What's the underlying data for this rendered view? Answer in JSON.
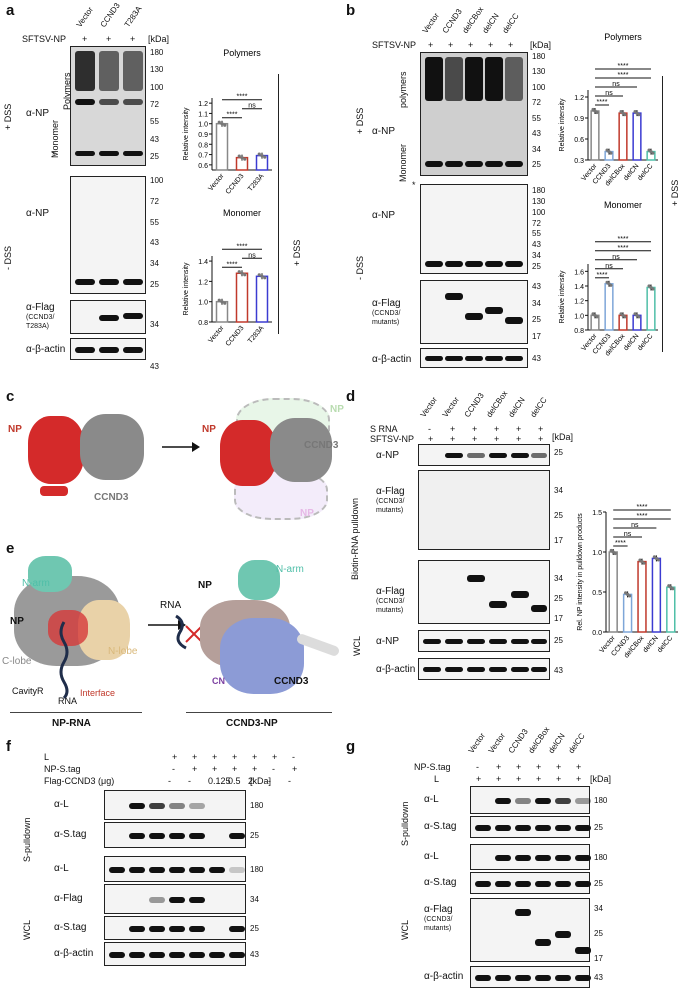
{
  "panels": {
    "a": {
      "label": "a",
      "header": "SFTSV-NP",
      "lanes": [
        "Vector",
        "CCND3",
        "T283A"
      ],
      "signs": [
        "+",
        "+",
        "+"
      ],
      "kda": "[kDa]",
      "markers_top": [
        "180",
        "130",
        "100",
        "72",
        "55",
        "43",
        "25"
      ],
      "markers_mid": [
        "100",
        "72",
        "55",
        "43",
        "34",
        "25"
      ],
      "markers_flag": [
        "34"
      ],
      "markers_actin": [
        "43"
      ],
      "polymers": "Polymers",
      "monomer": "Monomer",
      "star": "*",
      "dss_plus": "+ DSS",
      "dss_minus": "- DSS",
      "dss_right": "+ DSS",
      "np_label": "α-NP",
      "np_label2": "α-NP",
      "flag_label": "α-Flag",
      "flag_sub": "(CCND3/",
      "flag_sub2": "T283A)",
      "actin_label": "α-β-actin"
    },
    "b": {
      "label": "b",
      "header": "SFTSV-NP",
      "lanes": [
        "Vector",
        "CCND3",
        "delCBox",
        "delCN",
        "delCC"
      ],
      "signs": [
        "+",
        "+",
        "+",
        "+",
        "+"
      ],
      "kda": "[kDa]",
      "markers_top": [
        "180",
        "130",
        "100",
        "72",
        "55",
        "43",
        "34",
        "25"
      ],
      "markers_mid": [
        "180",
        "130",
        "100",
        "72",
        "55",
        "43",
        "34",
        "25"
      ],
      "markers_flag": [
        "43",
        "34",
        "25",
        "17"
      ],
      "markers_actin": [
        "43"
      ],
      "polymers": "polymers",
      "monomer": "Monomer",
      "star": "*",
      "dss_plus": "+ DSS",
      "dss_minus": "- DSS",
      "dss_right": "+ DSS",
      "np_label": "α-NP",
      "np_label2": "α-NP",
      "flag_label": "α-Flag",
      "flag_sub": "(CCND3/",
      "flag_sub2": "mutants)",
      "actin_label": "α-β-actin"
    },
    "c": {
      "label": "c",
      "np": "NP",
      "ccnd3": "CCND3",
      "np_ghost": "NP",
      "np_ghost2": "NP",
      "np2": "NP",
      "ccnd3_2": "CCND3"
    },
    "d": {
      "label": "d",
      "row1": "S RNA",
      "row2": "SFTSV-NP",
      "lanes": [
        "Vector",
        "Vector",
        "CCND3",
        "delCBox",
        "delCN",
        "delCC"
      ],
      "row1_signs": [
        "-",
        "+",
        "+",
        "+",
        "+",
        "+"
      ],
      "row2_signs": [
        "+",
        "+",
        "+",
        "+",
        "+",
        "+"
      ],
      "kda": "[kDa]",
      "side_pulldown": "Biotin-RNA pulldown",
      "side_wcl": "WCL",
      "np_label": "α-NP",
      "flag_label": "α-Flag",
      "flag_sub": "(CCND3/",
      "flag_sub2": "mutants)",
      "flag_label2": "α-Flag",
      "flag_sub3": "(CCND3/",
      "flag_sub4": "mutants)",
      "np_label2": "α-NP",
      "actin_label": "α-β-actin",
      "m_np": [
        "25"
      ],
      "m_flag": [
        "34",
        "25",
        "17"
      ],
      "m_flag2": [
        "34",
        "25",
        "17"
      ],
      "m_np2": [
        "25"
      ],
      "m_actin": [
        "43"
      ]
    },
    "e": {
      "label": "e",
      "narm": "N-arm",
      "np": "NP",
      "clobe": "C-lobe",
      "nlobe": "N-lobe",
      "cavity": "CavityR",
      "rna": "RNA",
      "interface": "Interface",
      "caption1": "NP-RNA",
      "rna2": "RNA",
      "narm2": "N-arm",
      "np2": "NP",
      "cn": "CN",
      "ccnd3": "CCND3",
      "caption2": "CCND3-NP"
    },
    "f": {
      "label": "f",
      "rows": [
        "L",
        "NP-S.tag",
        "Flag-CCND3 (μg)"
      ],
      "row_L": [
        "+",
        "+",
        "+",
        "+",
        "+",
        "+",
        "-"
      ],
      "row_NP": [
        "-",
        "+",
        "+",
        "+",
        "+",
        "-",
        "+"
      ],
      "row_flag": [
        "-",
        "-",
        "0.125",
        "0.5",
        "2",
        "-",
        "-"
      ],
      "kda": "[kDa]",
      "side_pulldown": "S-pulldown",
      "side_wcl": "WCL",
      "blots": [
        "α-L",
        "α-S.tag",
        "α-L",
        "α-Flag",
        "α-S.tag",
        "α-β-actin"
      ],
      "markers": [
        "180",
        "25",
        "180",
        "34",
        "25",
        "43"
      ]
    },
    "g": {
      "label": "g",
      "lanes": [
        "Vector",
        "Vector",
        "CCND3",
        "delCBox",
        "delCN",
        "delCC"
      ],
      "row1": "NP-S.tag",
      "row2": "L",
      "row1_signs": [
        "-",
        "+",
        "+",
        "+",
        "+",
        "+"
      ],
      "row2_signs": [
        "+",
        "+",
        "+",
        "+",
        "+",
        "+"
      ],
      "kda": "[kDa]",
      "side_pulldown": "S-pulldown",
      "side_wcl": "WCL",
      "blots": [
        "α-L",
        "α-S.tag",
        "α-L",
        "α-S.tag",
        "α-Flag",
        "α-β-actin"
      ],
      "flag_sub": "(CCND3/",
      "flag_sub2": "mutants)",
      "markers": [
        "180",
        "25",
        "180",
        "25",
        "34",
        "25",
        "17",
        "43"
      ]
    }
  },
  "chart_data": [
    {
      "type": "bar",
      "panel": "a",
      "title": "Polymers",
      "categories": [
        "Vector",
        "CCND3",
        "T283A"
      ],
      "values": [
        1.0,
        0.67,
        0.69
      ],
      "ylabel": "Relative intensity",
      "ylim": [
        0.55,
        1.25
      ],
      "yticks": [
        "0.6",
        "0.7",
        "0.8",
        "0.9",
        "1.0",
        "1.1",
        "1.2"
      ],
      "significance": [
        "****",
        "****",
        "ns"
      ],
      "colors": [
        "#888888",
        "#c0392b",
        "#3b3bd1"
      ]
    },
    {
      "type": "bar",
      "panel": "a",
      "title": "Monomer",
      "categories": [
        "Vector",
        "CCND3",
        "T283A"
      ],
      "values": [
        1.0,
        1.28,
        1.25
      ],
      "ylabel": "Relative intensity",
      "ylim": [
        0.8,
        1.45
      ],
      "yticks": [
        "0.8",
        "1.0",
        "1.2",
        "1.4"
      ],
      "significance": [
        "****",
        "****",
        "ns"
      ],
      "colors": [
        "#888888",
        "#c0392b",
        "#3b3bd1"
      ]
    },
    {
      "type": "bar",
      "panel": "b",
      "title": "Polymers",
      "categories": [
        "Vector",
        "CCND3",
        "delCBox",
        "delCN",
        "delCC"
      ],
      "values": [
        1.0,
        0.42,
        0.97,
        0.97,
        0.42
      ],
      "ylabel": "Relative intensity",
      "ylim": [
        0.3,
        1.3
      ],
      "yticks": [
        "0.3",
        "0.6",
        "0.9",
        "1.2"
      ],
      "significance": [
        "****",
        "****",
        "ns",
        "ns",
        "****"
      ],
      "colors": [
        "#888888",
        "#7ea6d8",
        "#c0392b",
        "#3b3bd1",
        "#4fbfa8"
      ]
    },
    {
      "type": "bar",
      "panel": "b",
      "title": "Monomer",
      "categories": [
        "Vector",
        "CCND3",
        "delCBox",
        "delCN",
        "delCC"
      ],
      "values": [
        1.0,
        1.43,
        1.0,
        1.0,
        1.38
      ],
      "ylabel": "Relative intensity",
      "ylim": [
        0.8,
        1.7
      ],
      "yticks": [
        "0.8",
        "1.0",
        "1.2",
        "1.4",
        "1.6"
      ],
      "significance": [
        "****",
        "****",
        "ns",
        "ns",
        "****"
      ],
      "colors": [
        "#888888",
        "#7ea6d8",
        "#c0392b",
        "#3b3bd1",
        "#4fbfa8"
      ]
    },
    {
      "type": "bar",
      "panel": "d",
      "title": "",
      "categories": [
        "Vector",
        "CCND3",
        "delCBox",
        "delCN",
        "delCC"
      ],
      "values": [
        1.0,
        0.47,
        0.88,
        0.92,
        0.56
      ],
      "ylabel": "Rel. NP intensity in pulldown products",
      "ylim": [
        0.0,
        1.5
      ],
      "yticks": [
        "0.0",
        "0.5",
        "1.0",
        "1.5"
      ],
      "significance": [
        "****",
        "****",
        "ns",
        "ns",
        "****"
      ],
      "colors": [
        "#888888",
        "#7ea6d8",
        "#c0392b",
        "#3b3bd1",
        "#4fbfa8"
      ]
    }
  ]
}
